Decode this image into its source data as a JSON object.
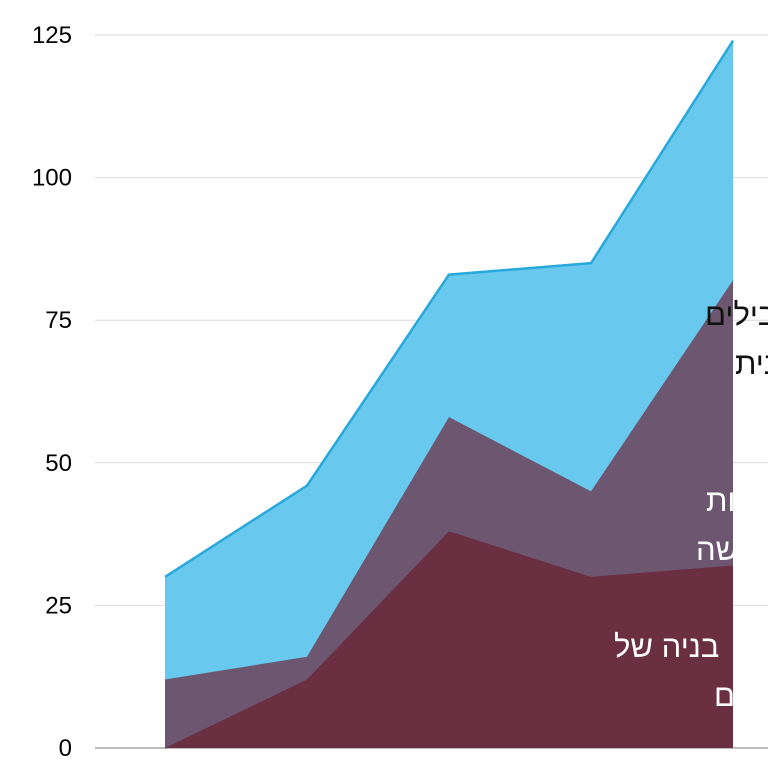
{
  "chart_data": {
    "type": "area",
    "stacked": true,
    "title": "",
    "xlabel": "",
    "ylabel": "",
    "x": [
      1,
      2,
      3,
      4,
      5
    ],
    "ylim": [
      0,
      125
    ],
    "yticks": [
      0,
      25,
      50,
      75,
      100,
      125
    ],
    "ytick_labels": [
      "0",
      "25",
      "50",
      "75",
      "100",
      "125"
    ],
    "grid": true,
    "legend": "none",
    "series": [
      {
        "label_lines": [
          "בניה של",
          "מוצרים/ שירותים חדשים"
        ],
        "values": [
          0,
          12,
          38,
          30,
          32
        ],
        "color": "#6B2F42"
      },
      {
        "label_lines": [
          "מציאת מוטיבציות",
          "חדשות לרכישה"
        ],
        "values": [
          12,
          4,
          20,
          15,
          50
        ],
        "color": "#6D5670"
      },
      {
        "label_lines": [
          "מהלכי תוכן מקבילים",
          "בתקשור במדיה בו זמנית"
        ],
        "values": [
          18,
          30,
          25,
          40,
          42
        ],
        "color": "#68C8ED",
        "line_color": "#29A8DC"
      }
    ]
  }
}
